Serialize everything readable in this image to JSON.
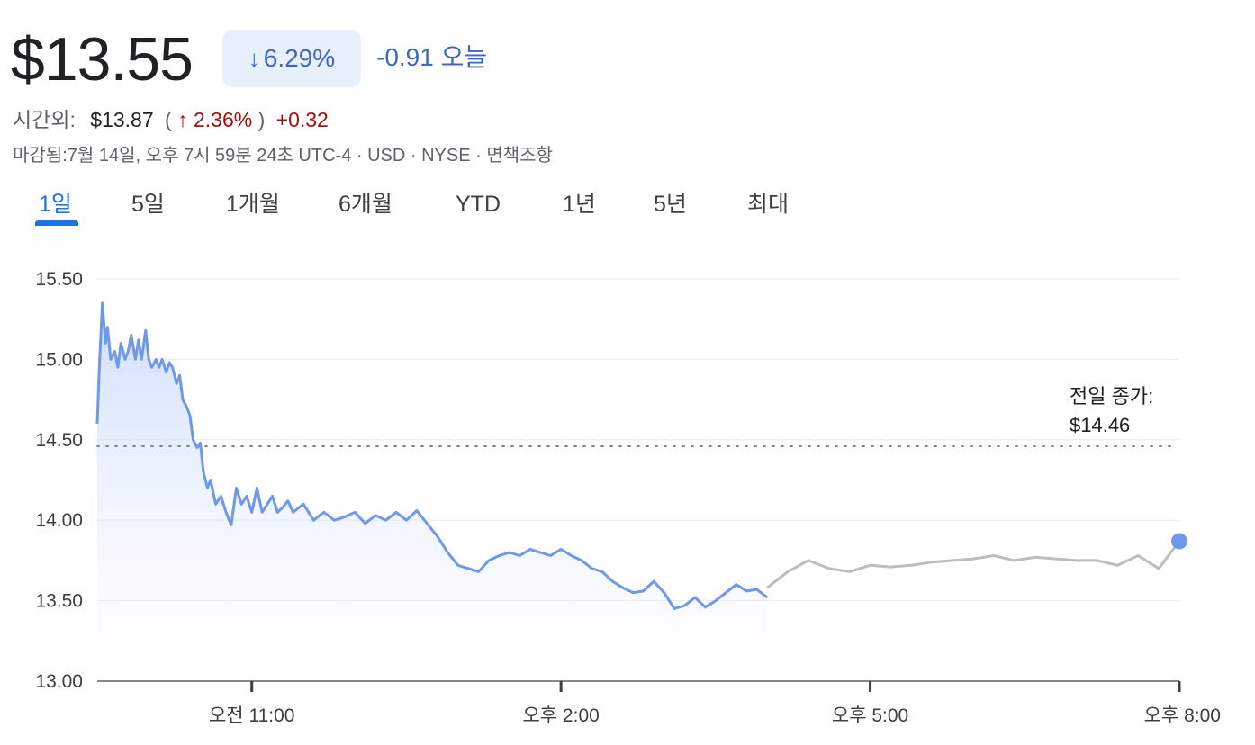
{
  "header": {
    "price": "$13.55",
    "change_pct": "6.29%",
    "change_direction_icon": "arrow-down-icon",
    "change_abs": "-0.91 오늘",
    "afterhours_label": "시간외:",
    "afterhours_price": "$13.87",
    "afterhours_open_paren": "(",
    "afterhours_pct": "2.36%",
    "afterhours_close_paren": ")",
    "afterhours_direction_icon": "arrow-up-icon",
    "afterhours_abs": "+0.32",
    "meta": "마감됨:7월 14일, 오후 7시 59분 24초 UTC-4 · USD · NYSE · 면책조항"
  },
  "tabs": [
    {
      "label": "1일",
      "active": true
    },
    {
      "label": "5일",
      "active": false
    },
    {
      "label": "1개월",
      "active": false
    },
    {
      "label": "6개월",
      "active": false
    },
    {
      "label": "YTD",
      "active": false
    },
    {
      "label": "1년",
      "active": false
    },
    {
      "label": "5년",
      "active": false
    },
    {
      "label": "최대",
      "active": false
    }
  ],
  "colors": {
    "accent": "#1a73e8",
    "regular_line": "#6f98e8",
    "afterhours_line": "#bdbdbd",
    "down": "#3b67c9",
    "up": "#a50e0e"
  },
  "chart_data": {
    "type": "line",
    "y_tick_labels": [
      "15.50",
      "15.00",
      "14.50",
      "14.00",
      "13.50",
      "13.00"
    ],
    "y_ticks": [
      15.5,
      15.0,
      14.5,
      14.0,
      13.5,
      13.0
    ],
    "ylim": [
      13.0,
      15.5
    ],
    "x_tick_labels": [
      "오전 11:00",
      "오후 2:00",
      "오후 5:00",
      "오후 8:00"
    ],
    "x_ticks": [
      11,
      14,
      17,
      20
    ],
    "xlim": [
      9.5,
      20.0
    ],
    "grid": true,
    "previous_close": 14.46,
    "previous_close_label_line1": "전일 종가:",
    "previous_close_label_line2": "$14.46",
    "series": [
      {
        "session": "regular",
        "x": [
          9.5,
          9.52,
          9.55,
          9.58,
          9.6,
          9.63,
          9.67,
          9.7,
          9.73,
          9.77,
          9.8,
          9.83,
          9.87,
          9.9,
          9.93,
          9.97,
          10.0,
          10.03,
          10.07,
          10.1,
          10.13,
          10.17,
          10.2,
          10.23,
          10.27,
          10.3,
          10.33,
          10.37,
          10.4,
          10.43,
          10.47,
          10.5,
          10.53,
          10.57,
          10.6,
          10.65,
          10.7,
          10.75,
          10.8,
          10.85,
          10.9,
          10.95,
          11.0,
          11.05,
          11.1,
          11.15,
          11.2,
          11.25,
          11.3,
          11.35,
          11.4,
          11.5,
          11.6,
          11.7,
          11.8,
          11.9,
          12.0,
          12.1,
          12.2,
          12.3,
          12.4,
          12.5,
          12.6,
          12.7,
          12.8,
          12.9,
          13.0,
          13.1,
          13.2,
          13.3,
          13.4,
          13.5,
          13.6,
          13.7,
          13.8,
          13.9,
          14.0,
          14.1,
          14.2,
          14.3,
          14.4,
          14.5,
          14.6,
          14.7,
          14.8,
          14.9,
          15.0,
          15.1,
          15.2,
          15.3,
          15.4,
          15.5,
          15.6,
          15.7,
          15.8,
          15.9,
          16.0
        ],
        "y": [
          14.6,
          14.95,
          15.35,
          15.1,
          15.2,
          15.0,
          15.05,
          14.95,
          15.1,
          15.0,
          15.05,
          15.15,
          15.0,
          15.12,
          15.0,
          15.18,
          15.0,
          14.95,
          15.0,
          14.95,
          15.0,
          14.92,
          14.98,
          14.95,
          14.85,
          14.9,
          14.75,
          14.7,
          14.65,
          14.5,
          14.45,
          14.48,
          14.3,
          14.2,
          14.25,
          14.1,
          14.15,
          14.05,
          13.97,
          14.2,
          14.1,
          14.15,
          14.05,
          14.2,
          14.05,
          14.1,
          14.15,
          14.05,
          14.08,
          14.12,
          14.05,
          14.1,
          14.0,
          14.05,
          14.0,
          14.02,
          14.05,
          13.98,
          14.03,
          14.0,
          14.05,
          14.0,
          14.06,
          13.98,
          13.9,
          13.8,
          13.72,
          13.7,
          13.68,
          13.75,
          13.78,
          13.8,
          13.78,
          13.82,
          13.8,
          13.78,
          13.82,
          13.78,
          13.75,
          13.7,
          13.68,
          13.62,
          13.58,
          13.55,
          13.56,
          13.62,
          13.55,
          13.45,
          13.47,
          13.52,
          13.46,
          13.5,
          13.55,
          13.6,
          13.56,
          13.57,
          13.52
        ]
      },
      {
        "session": "after_hours",
        "x": [
          16.0,
          16.2,
          16.4,
          16.6,
          16.8,
          17.0,
          17.2,
          17.4,
          17.6,
          17.8,
          18.0,
          18.2,
          18.4,
          18.6,
          18.8,
          19.0,
          19.2,
          19.4,
          19.6,
          19.8,
          20.0
        ],
        "y": [
          13.58,
          13.68,
          13.75,
          13.7,
          13.68,
          13.72,
          13.71,
          13.72,
          13.74,
          13.75,
          13.76,
          13.78,
          13.75,
          13.77,
          13.76,
          13.75,
          13.75,
          13.72,
          13.78,
          13.7,
          13.87
        ]
      }
    ],
    "last_point": {
      "x": 20.0,
      "y": 13.87
    }
  }
}
